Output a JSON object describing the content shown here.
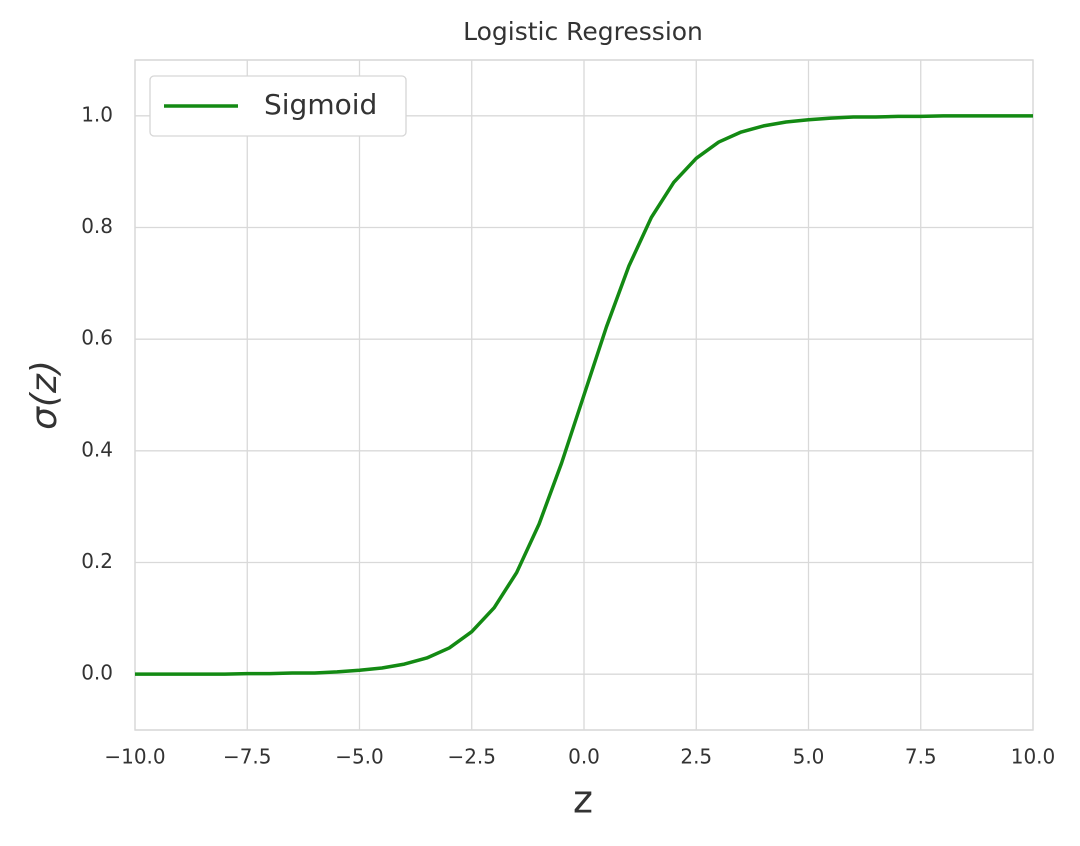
{
  "chart_data": {
    "type": "line",
    "title": "Logistic Regression",
    "x_label": "z",
    "y_label": "σ(z)",
    "x": [
      -10,
      -9.5,
      -9,
      -8.5,
      -8,
      -7.5,
      -7,
      -6.5,
      -6,
      -5.5,
      -5,
      -4.5,
      -4,
      -3.5,
      -3,
      -2.5,
      -2,
      -1.5,
      -1,
      -0.5,
      0,
      0.5,
      1,
      1.5,
      2,
      2.5,
      3,
      3.5,
      4,
      4.5,
      5,
      5.5,
      6,
      6.5,
      7,
      7.5,
      8,
      8.5,
      9,
      9.5,
      10
    ],
    "series": [
      {
        "name": "Sigmoid",
        "color": "#138a13",
        "values": [
          0,
          0,
          0,
          0,
          0,
          0.001,
          0.001,
          0.002,
          0.002,
          0.004,
          0.007,
          0.011,
          0.018,
          0.029,
          0.047,
          0.076,
          0.119,
          0.182,
          0.269,
          0.378,
          0.5,
          0.622,
          0.731,
          0.818,
          0.881,
          0.924,
          0.953,
          0.971,
          0.982,
          0.989,
          0.993,
          0.996,
          0.998,
          0.998,
          0.999,
          0.999,
          1,
          1,
          1,
          1,
          1
        ]
      }
    ],
    "xlim": [
      -10,
      10
    ],
    "xticks": [
      {
        "value": -10,
        "label": "−10.0"
      },
      {
        "value": -7.5,
        "label": "−7.5"
      },
      {
        "value": -5,
        "label": "−5.0"
      },
      {
        "value": -2.5,
        "label": "−2.5"
      },
      {
        "value": 0,
        "label": "0.0"
      },
      2.5,
      {
        "value": 5,
        "label": "5.0"
      },
      7.5,
      {
        "value": 10,
        "label": "10.0"
      }
    ],
    "ylim": [
      -0.1,
      1.1
    ],
    "yticks": [
      {
        "value": 0,
        "label": "0.0"
      },
      0.2,
      0.4,
      0.6,
      0.8,
      {
        "value": 1,
        "label": "1.0"
      }
    ],
    "grid": true,
    "legend": "upper left"
  }
}
